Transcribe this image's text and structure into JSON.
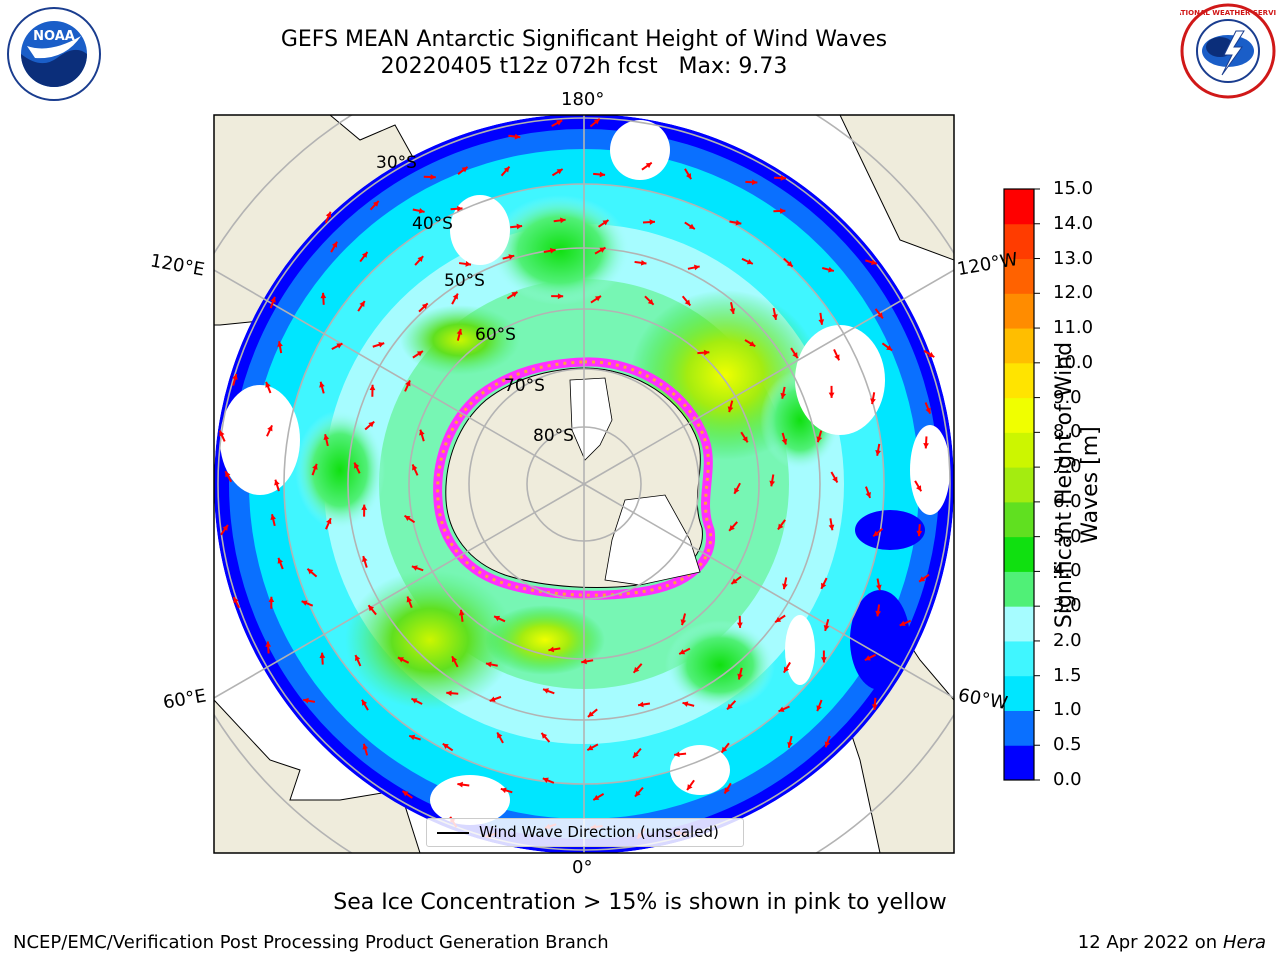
{
  "title": {
    "line1": "GEFS MEAN Antarctic Significant Height of Wind Waves",
    "line2": "20220405 t12z 072h fcst   Max: 9.73"
  },
  "map": {
    "projection": "south-polar-stereographic",
    "longitude_labels": [
      "180°",
      "120°E",
      "120°W",
      "60°E",
      "60°W",
      "0°"
    ],
    "latitude_labels": [
      "30°S",
      "40°S",
      "50°S",
      "60°S",
      "70°S",
      "80°S"
    ],
    "legend": "Wind Wave Direction (unscaled)",
    "colors": {
      "land": "#efecdc",
      "arrows": "#ff0000",
      "grid": "#b3b3b3"
    }
  },
  "colorbar": {
    "title": "Significant Height of Wind Waves [m]",
    "ticks": [
      "0.0",
      "0.5",
      "1.0",
      "1.5",
      "2.0",
      "3.0",
      "4.0",
      "5.0",
      "6.0",
      "7.0",
      "8.0",
      "9.0",
      "10.0",
      "11.0",
      "12.0",
      "13.0",
      "14.0",
      "15.0"
    ],
    "colors": [
      "#0000ff",
      "#0a70ff",
      "#00e6ff",
      "#40f6ff",
      "#a6fcff",
      "#50f077",
      "#10e010",
      "#60e020",
      "#a4ec10",
      "#ccf600",
      "#f0ff00",
      "#ffe400",
      "#ffbe00",
      "#ff8c00",
      "#ff6200",
      "#ff3c00",
      "#ff0000"
    ]
  },
  "ice_note": "Sea Ice Concentration > 15% is shown in pink to yellow",
  "footer": {
    "left": "NCEP/EMC/Verification Post Processing Product Generation Branch",
    "right_prefix": "12 Apr 2022 on ",
    "right_host": "Hera"
  },
  "logos": {
    "left": "NOAA",
    "right": "NATIONAL WEATHER SERVICE"
  }
}
